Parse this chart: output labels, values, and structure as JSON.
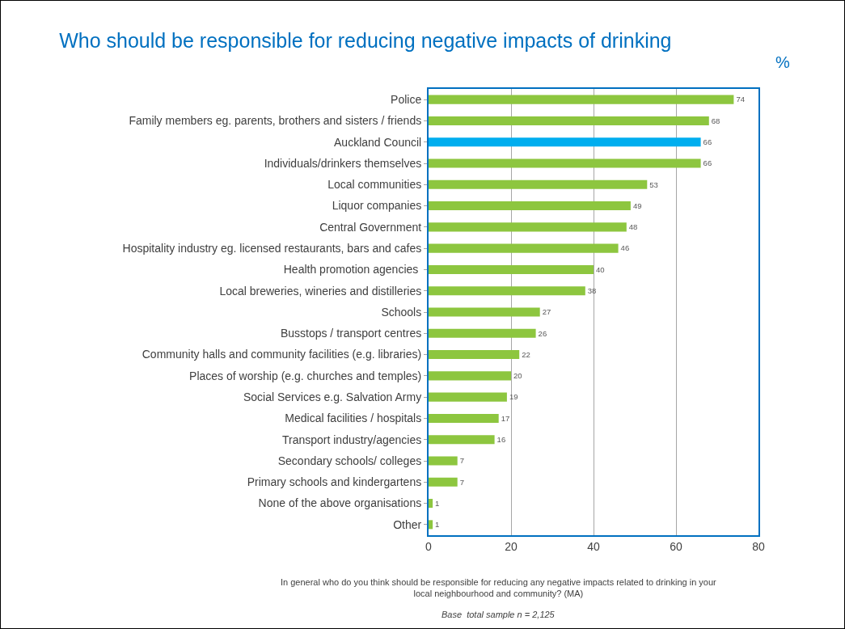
{
  "chart_data": {
    "type": "bar",
    "orientation": "horizontal",
    "title": "Who should be responsible for reducing negative impacts of drinking",
    "categories": [
      "Police",
      "Family members eg. parents, brothers and sisters / friends",
      "Auckland Council",
      "Individuals/drinkers themselves",
      "Local communities",
      "Liquor companies",
      "Central Government",
      "Hospitality industry eg. licensed restaurants, bars and cafes",
      "Health promotion agencies ",
      "Local breweries, wineries and distilleries",
      "Schools",
      "Busstops / transport centres",
      "Community halls and community facilities (e.g. libraries)",
      "Places of worship (e.g. churches and temples)",
      "Social Services e.g. Salvation Army",
      "Medical facilities / hospitals",
      "Transport industry/agencies",
      "Secondary schools/ colleges",
      "Primary schools and kindergartens",
      "None of the above organisations",
      "Other"
    ],
    "values": [
      74,
      68,
      66,
      66,
      53,
      49,
      48,
      46,
      40,
      38,
      27,
      26,
      22,
      20,
      19,
      17,
      16,
      7,
      7,
      1,
      1
    ],
    "colors": [
      "#8dc63f",
      "#8dc63f",
      "#00aeef",
      "#8dc63f",
      "#8dc63f",
      "#8dc63f",
      "#8dc63f",
      "#8dc63f",
      "#8dc63f",
      "#8dc63f",
      "#8dc63f",
      "#8dc63f",
      "#8dc63f",
      "#8dc63f",
      "#8dc63f",
      "#8dc63f",
      "#8dc63f",
      "#8dc63f",
      "#8dc63f",
      "#8dc63f",
      "#8dc63f"
    ],
    "xlim": [
      0,
      80
    ],
    "xticks": [
      0,
      20,
      40,
      60,
      80
    ],
    "grid": "x",
    "data_labels": true,
    "legend": false,
    "annotations": [
      "%",
      "In general who do you think should be responsible for reducing any negative impacts related to drinking in your\nlocal neighbourhood and community? (MA)",
      "Base  total sample n = 2,125"
    ]
  }
}
